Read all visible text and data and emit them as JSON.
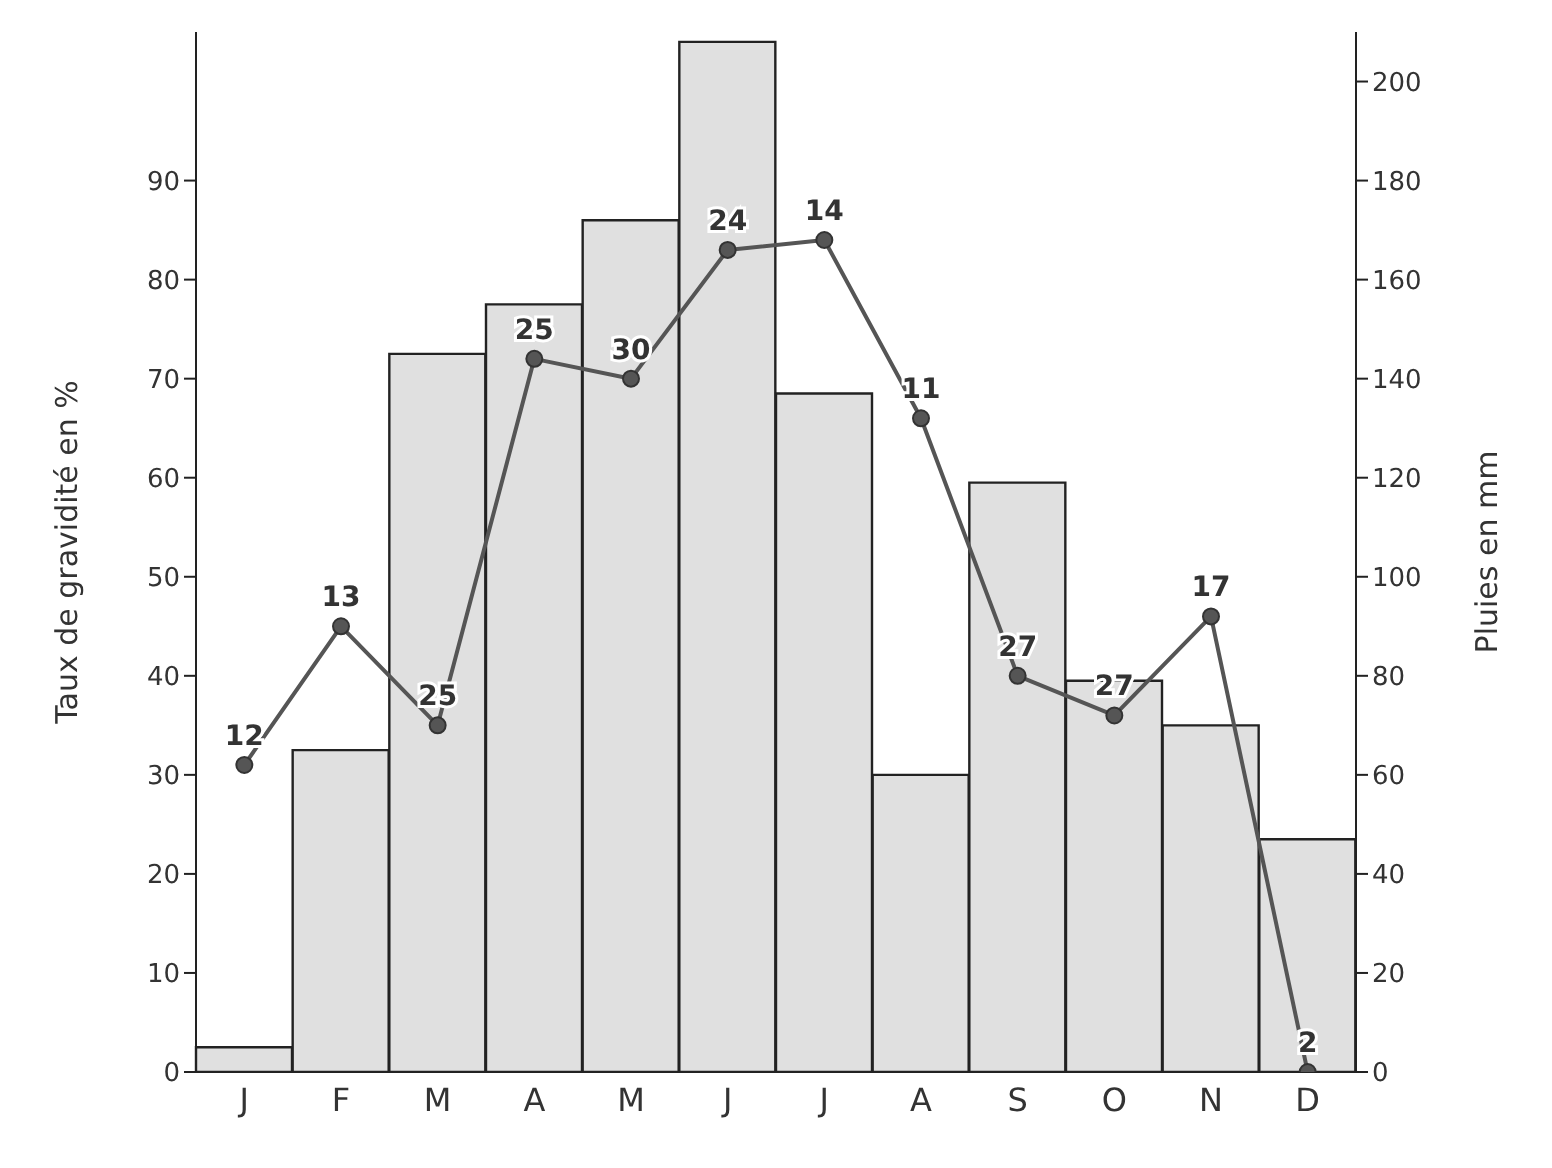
{
  "chart_data": {
    "type": "bar",
    "categories": [
      "J",
      "F",
      "M",
      "A",
      "M",
      "J",
      "J",
      "A",
      "S",
      "O",
      "N",
      "D"
    ],
    "ylabel": "Taux de gravidité en %",
    "y2label": "Pluies en mm",
    "ylim": [
      0,
      105
    ],
    "yticks": [
      0,
      10,
      20,
      30,
      40,
      50,
      60,
      70,
      80,
      90
    ],
    "y2lim": [
      0,
      210
    ],
    "y2ticks": [
      0,
      20,
      40,
      60,
      80,
      100,
      120,
      140,
      160,
      180,
      200
    ],
    "grid": false,
    "legend": false,
    "marker": "circle",
    "line_style": "solid",
    "annotations": [
      "12",
      "13",
      "25",
      "25",
      "30",
      "24",
      "14",
      "11",
      "27",
      "27",
      "17",
      "2"
    ],
    "series": [
      {
        "axis": "y2",
        "color": "#e0e0e0",
        "values": [
          5,
          65,
          145,
          155,
          172,
          208,
          137,
          60,
          119,
          79,
          70,
          47
        ]
      },
      {
        "type": "line",
        "axis": "y",
        "color": "#555555",
        "values": [
          31,
          45,
          35,
          72,
          70,
          83,
          84,
          66,
          40,
          36,
          46,
          0
        ]
      }
    ]
  }
}
